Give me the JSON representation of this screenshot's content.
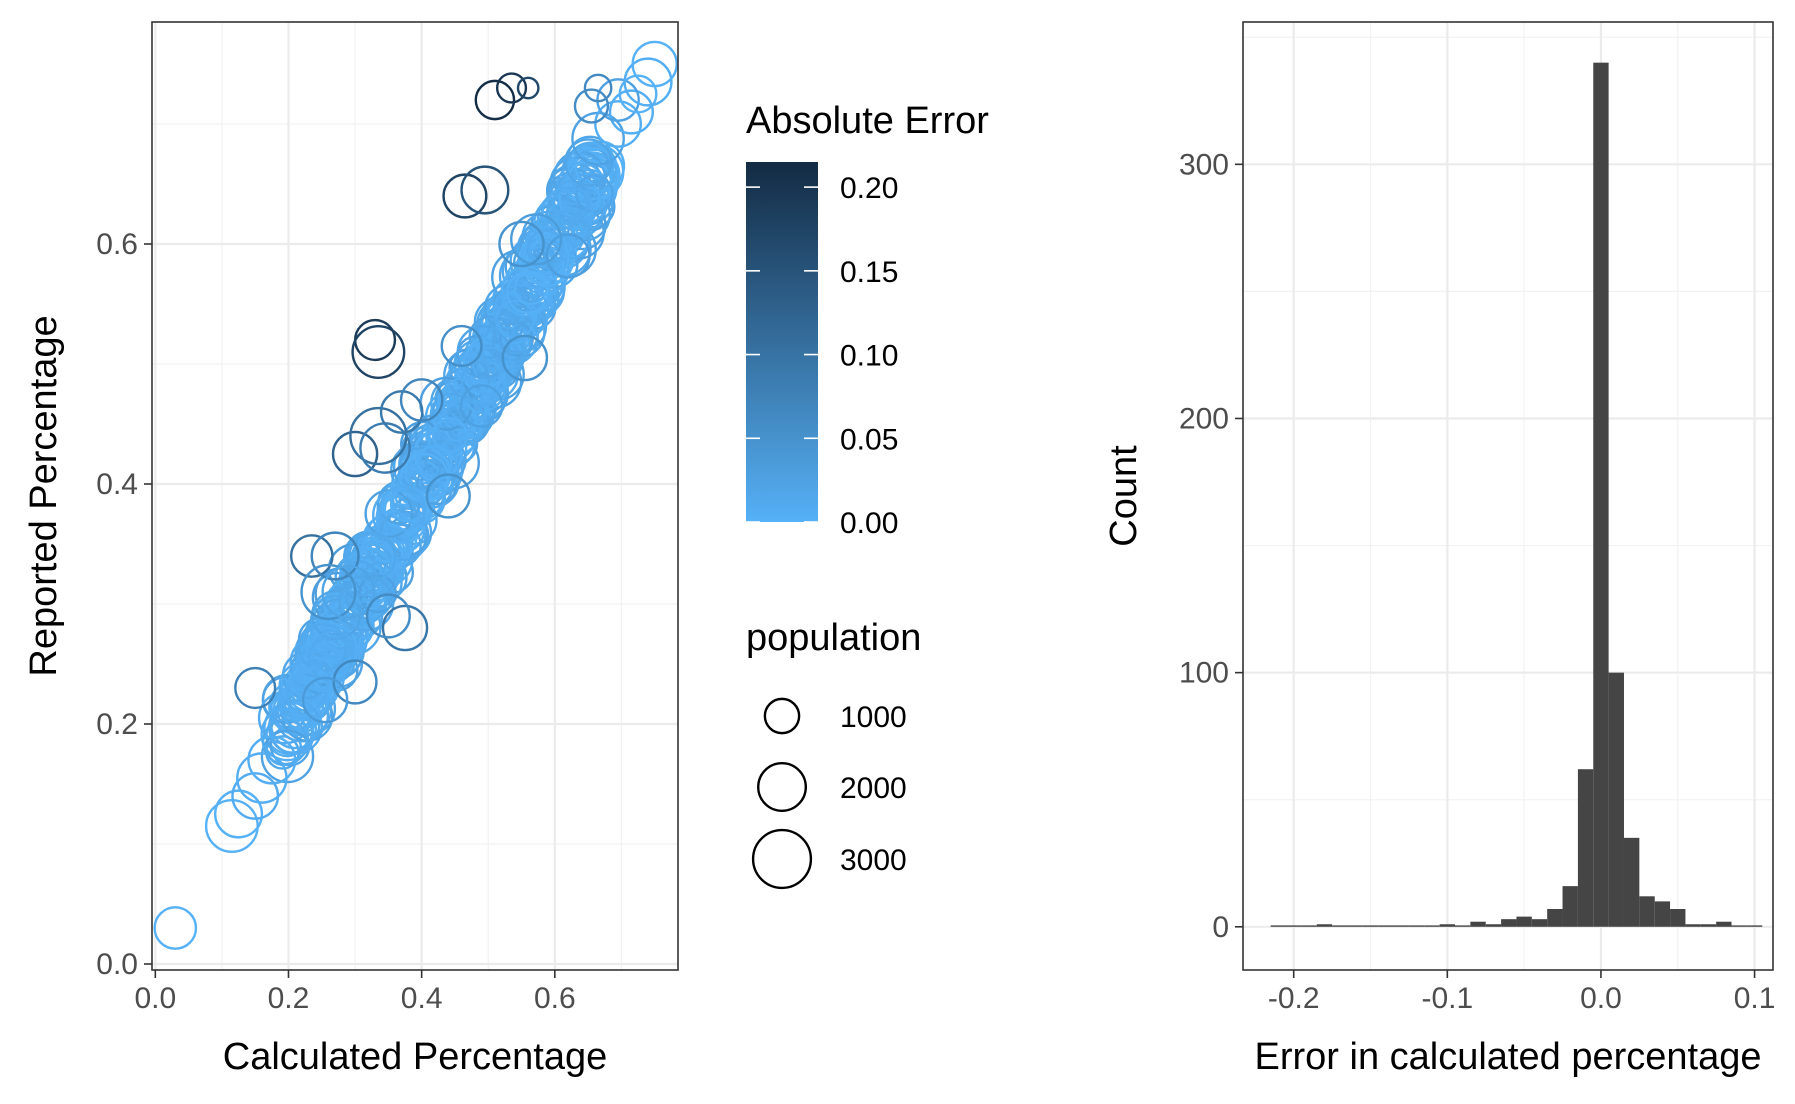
{
  "chart_data": [
    {
      "type": "scatter",
      "title": "",
      "xlabel": "Calculated Percentage",
      "ylabel": "Reported Percentage",
      "xlim": [
        -0.005,
        0.785
      ],
      "ylim": [
        -0.005,
        0.785
      ],
      "x_ticks": [
        {
          "value": 0.0,
          "label": "0.0"
        },
        {
          "value": 0.2,
          "label": "0.2"
        },
        {
          "value": 0.4,
          "label": "0.4"
        },
        {
          "value": 0.6,
          "label": "0.6"
        }
      ],
      "y_ticks": [
        {
          "value": 0.0,
          "label": "0.0"
        },
        {
          "value": 0.2,
          "label": "0.2"
        },
        {
          "value": 0.4,
          "label": "0.4"
        },
        {
          "value": 0.6,
          "label": "0.6"
        }
      ],
      "grid": true,
      "color_scale": {
        "title": "Absolute Error",
        "low_color": "#56B1F7",
        "high_color": "#132B43",
        "range": [
          0,
          0.215
        ],
        "ticks": [
          {
            "value": 0.0,
            "label": "0.00"
          },
          {
            "value": 0.05,
            "label": "0.05"
          },
          {
            "value": 0.1,
            "label": "0.10"
          },
          {
            "value": 0.15,
            "label": "0.15"
          },
          {
            "value": 0.2,
            "label": "0.20"
          }
        ]
      },
      "size_scale": {
        "title": "population",
        "entries": [
          {
            "value": 1000,
            "label": "1000"
          },
          {
            "value": 2000,
            "label": "2000"
          },
          {
            "value": 3000,
            "label": "3000"
          }
        ]
      },
      "outliers": [
        {
          "x": 0.51,
          "y": 0.72,
          "population": 1000
        },
        {
          "x": 0.535,
          "y": 0.73,
          "population": 500
        },
        {
          "x": 0.56,
          "y": 0.73,
          "population": 200
        },
        {
          "x": 0.465,
          "y": 0.64,
          "population": 1300
        },
        {
          "x": 0.495,
          "y": 0.645,
          "population": 1600
        },
        {
          "x": 0.33,
          "y": 0.52,
          "population": 1100
        },
        {
          "x": 0.335,
          "y": 0.51,
          "population": 2000
        },
        {
          "x": 0.3,
          "y": 0.425,
          "population": 1400
        },
        {
          "x": 0.335,
          "y": 0.44,
          "population": 2400
        },
        {
          "x": 0.345,
          "y": 0.43,
          "population": 1800
        },
        {
          "x": 0.37,
          "y": 0.46,
          "population": 1200
        },
        {
          "x": 0.235,
          "y": 0.34,
          "population": 1200
        },
        {
          "x": 0.27,
          "y": 0.34,
          "population": 1600
        },
        {
          "x": 0.26,
          "y": 0.31,
          "population": 2200
        },
        {
          "x": 0.29,
          "y": 0.31,
          "population": 2000
        },
        {
          "x": 0.375,
          "y": 0.28,
          "population": 1400
        },
        {
          "x": 0.35,
          "y": 0.29,
          "population": 1300
        },
        {
          "x": 0.3,
          "y": 0.235,
          "population": 1300
        },
        {
          "x": 0.15,
          "y": 0.23,
          "population": 1100
        },
        {
          "x": 0.665,
          "y": 0.73,
          "population": 400
        },
        {
          "x": 0.655,
          "y": 0.715,
          "population": 700
        },
        {
          "x": 0.255,
          "y": 0.22,
          "population": 1400
        },
        {
          "x": 0.44,
          "y": 0.39,
          "population": 1300
        },
        {
          "x": 0.49,
          "y": 0.465,
          "population": 1200
        },
        {
          "x": 0.555,
          "y": 0.505,
          "population": 1400
        },
        {
          "x": 0.55,
          "y": 0.6,
          "population": 1400
        },
        {
          "x": 0.4,
          "y": 0.47,
          "population": 1200
        },
        {
          "x": 0.62,
          "y": 0.59,
          "population": 1300
        },
        {
          "x": 0.46,
          "y": 0.515,
          "population": 1100
        }
      ],
      "main_trend": {
        "x_range": [
          0.03,
          0.75
        ],
        "y_equals_x": true,
        "lower_points": [
          {
            "x": 0.03,
            "y": 0.03,
            "population": 1200
          },
          {
            "x": 0.115,
            "y": 0.115,
            "population": 2000
          },
          {
            "x": 0.125,
            "y": 0.125,
            "population": 1600
          },
          {
            "x": 0.15,
            "y": 0.14,
            "population": 1500
          },
          {
            "x": 0.16,
            "y": 0.155,
            "population": 1800
          },
          {
            "x": 0.175,
            "y": 0.17,
            "population": 1600
          },
          {
            "x": 0.195,
            "y": 0.185,
            "population": 1400
          },
          {
            "x": 0.21,
            "y": 0.2,
            "population": 1700
          },
          {
            "x": 0.695,
            "y": 0.7,
            "population": 1500
          },
          {
            "x": 0.715,
            "y": 0.71,
            "population": 1300
          },
          {
            "x": 0.695,
            "y": 0.72,
            "population": 1200
          },
          {
            "x": 0.725,
            "y": 0.725,
            "population": 900
          },
          {
            "x": 0.74,
            "y": 0.735,
            "population": 1600
          },
          {
            "x": 0.75,
            "y": 0.75,
            "population": 1400
          }
        ]
      }
    },
    {
      "type": "bar",
      "title": "",
      "xlabel": "Error in calculated percentage",
      "ylabel": "Count",
      "xlim": [
        -0.233,
        0.112
      ],
      "ylim": [
        -17,
        356
      ],
      "x_ticks": [
        {
          "value": -0.2,
          "label": "-0.2"
        },
        {
          "value": -0.1,
          "label": "-0.1"
        },
        {
          "value": 0.0,
          "label": "0.0"
        },
        {
          "value": 0.1,
          "label": "0.1"
        }
      ],
      "y_ticks": [
        {
          "value": 0,
          "label": "0"
        },
        {
          "value": 100,
          "label": "100"
        },
        {
          "value": 200,
          "label": "200"
        },
        {
          "value": 300,
          "label": "300"
        }
      ],
      "grid": true,
      "bar_color": "#454545",
      "bin_width": 0.01,
      "bins": [
        {
          "start": -0.215,
          "count": 0
        },
        {
          "start": -0.205,
          "count": 0
        },
        {
          "start": -0.195,
          "count": 0
        },
        {
          "start": -0.185,
          "count": 1
        },
        {
          "start": -0.175,
          "count": 0
        },
        {
          "start": -0.165,
          "count": 0
        },
        {
          "start": -0.155,
          "count": 0
        },
        {
          "start": -0.145,
          "count": 0
        },
        {
          "start": -0.135,
          "count": 0
        },
        {
          "start": -0.125,
          "count": 0
        },
        {
          "start": -0.115,
          "count": 0
        },
        {
          "start": -0.105,
          "count": 1
        },
        {
          "start": -0.095,
          "count": 0
        },
        {
          "start": -0.085,
          "count": 2
        },
        {
          "start": -0.075,
          "count": 1
        },
        {
          "start": -0.065,
          "count": 3
        },
        {
          "start": -0.055,
          "count": 4
        },
        {
          "start": -0.045,
          "count": 3
        },
        {
          "start": -0.035,
          "count": 7
        },
        {
          "start": -0.025,
          "count": 16
        },
        {
          "start": -0.015,
          "count": 62
        },
        {
          "start": -0.005,
          "count": 340
        },
        {
          "start": 0.005,
          "count": 100
        },
        {
          "start": 0.015,
          "count": 35
        },
        {
          "start": 0.025,
          "count": 12
        },
        {
          "start": 0.035,
          "count": 10
        },
        {
          "start": 0.045,
          "count": 7
        },
        {
          "start": 0.055,
          "count": 1
        },
        {
          "start": 0.065,
          "count": 1
        },
        {
          "start": 0.075,
          "count": 2
        },
        {
          "start": 0.085,
          "count": 0
        },
        {
          "start": 0.095,
          "count": 0
        }
      ]
    }
  ]
}
